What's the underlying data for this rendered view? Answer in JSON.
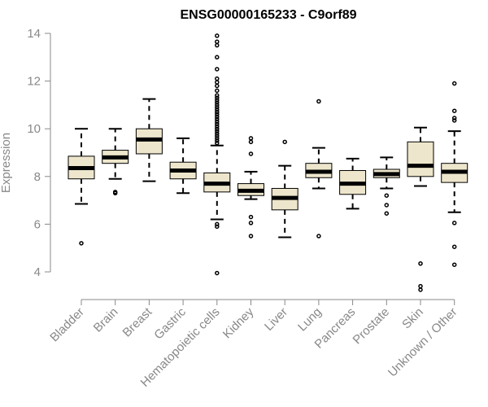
{
  "chart_data": {
    "type": "box",
    "title": "ENSG00000165233 - C9orf89",
    "xlabel": "",
    "ylabel": "Expression",
    "ylim": [
      3,
      14.2
    ],
    "yticks": [
      4,
      6,
      8,
      10,
      12,
      14
    ],
    "grid": false,
    "categories": [
      "Bladder",
      "Brain",
      "Breast",
      "Gastric",
      "Hematopoietic cells",
      "Kidney",
      "Liver",
      "Lung",
      "Pancreas",
      "Prostate",
      "Skin",
      "Unknown / Other"
    ],
    "boxes": [
      {
        "category": "Bladder",
        "whisker_low": 6.85,
        "q1": 7.9,
        "median": 8.35,
        "q3": 8.85,
        "whisker_high": 10.0,
        "outliers": [
          5.2
        ]
      },
      {
        "category": "Brain",
        "whisker_low": 7.9,
        "q1": 8.55,
        "median": 8.8,
        "q3": 9.1,
        "whisker_high": 10.0,
        "outliers": [
          7.3,
          7.35
        ]
      },
      {
        "category": "Breast",
        "whisker_low": 7.8,
        "q1": 8.95,
        "median": 9.55,
        "q3": 10.0,
        "whisker_high": 11.25,
        "outliers": []
      },
      {
        "category": "Gastric",
        "whisker_low": 7.3,
        "q1": 7.9,
        "median": 8.25,
        "q3": 8.6,
        "whisker_high": 9.6,
        "outliers": []
      },
      {
        "category": "Hematopoietic cells",
        "whisker_low": 6.2,
        "q1": 7.35,
        "median": 7.7,
        "q3": 8.15,
        "whisker_high": 9.3,
        "outliers": [
          3.95,
          5.9,
          6.0,
          9.4,
          9.5,
          9.6,
          9.7,
          9.8,
          9.9,
          10.0,
          10.1,
          10.2,
          10.3,
          10.4,
          10.5,
          10.6,
          10.7,
          10.8,
          10.9,
          11.0,
          11.1,
          11.2,
          11.3,
          11.4,
          11.6,
          11.8,
          11.95,
          12.1,
          12.5,
          13.0,
          13.5,
          13.65,
          13.9
        ]
      },
      {
        "category": "Kidney",
        "whisker_low": 7.05,
        "q1": 7.2,
        "median": 7.4,
        "q3": 7.7,
        "whisker_high": 8.2,
        "outliers": [
          5.5,
          6.05,
          6.3,
          8.95,
          9.45,
          9.6
        ]
      },
      {
        "category": "Liver",
        "whisker_low": 5.45,
        "q1": 6.6,
        "median": 7.1,
        "q3": 7.5,
        "whisker_high": 8.45,
        "outliers": [
          9.45
        ]
      },
      {
        "category": "Lung",
        "whisker_low": 7.5,
        "q1": 7.95,
        "median": 8.2,
        "q3": 8.55,
        "whisker_high": 9.2,
        "outliers": [
          5.5,
          11.15
        ]
      },
      {
        "category": "Pancreas",
        "whisker_low": 6.65,
        "q1": 7.25,
        "median": 7.7,
        "q3": 8.25,
        "whisker_high": 8.75,
        "outliers": []
      },
      {
        "category": "Prostate",
        "whisker_low": 7.5,
        "q1": 7.95,
        "median": 8.1,
        "q3": 8.3,
        "whisker_high": 8.8,
        "outliers": [
          6.45,
          6.8,
          7.2
        ]
      },
      {
        "category": "Skin",
        "whisker_low": 7.6,
        "q1": 8.0,
        "median": 8.45,
        "q3": 9.45,
        "whisker_high": 10.05,
        "outliers": [
          3.25,
          3.4,
          4.35
        ]
      },
      {
        "category": "Unknown / Other",
        "whisker_low": 6.5,
        "q1": 7.75,
        "median": 8.2,
        "q3": 8.55,
        "whisker_high": 9.9,
        "outliers": [
          4.3,
          5.05,
          6.05,
          10.35,
          10.45,
          10.75,
          11.9
        ]
      }
    ],
    "colors": {
      "box_fill": "#ede6cc",
      "box_stroke": "#000000",
      "axis": "#888888",
      "label": "#888888"
    }
  }
}
